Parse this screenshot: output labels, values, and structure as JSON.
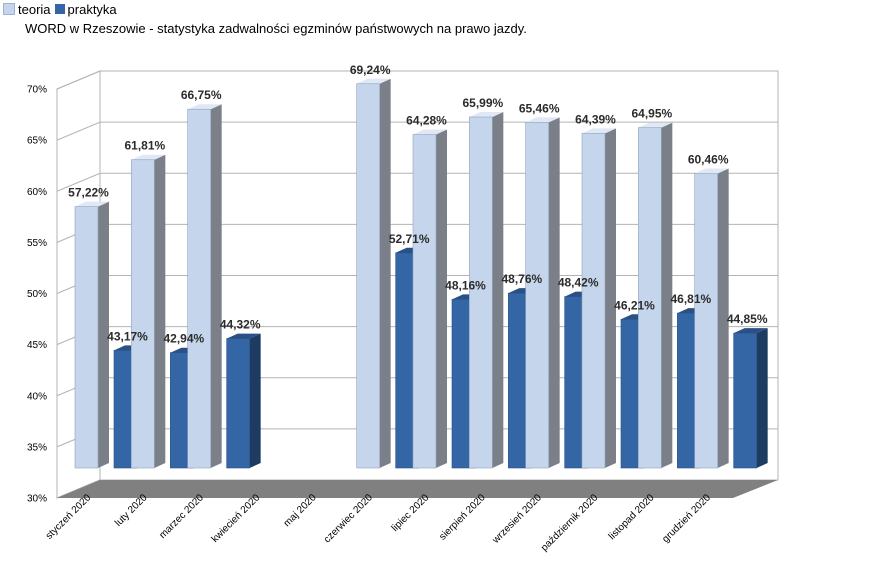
{
  "chart_data": {
    "type": "bar",
    "title": "WORD w Rzeszowie - statystyka zadwalności egzminów państwowych na prawo jazdy.",
    "categories": [
      "styczeń 2020",
      "luty 2020",
      "marzec 2020",
      "kwiecień 2020",
      "maj 2020",
      "czerwiec 2020",
      "lipiec 2020",
      "sierpień 2020",
      "wrzesień 2020",
      "październik 2020",
      "listopad 2020",
      "grudzień 2020"
    ],
    "series": [
      {
        "name": "teoria",
        "color": "#c5d5eb",
        "values": [
          57.22,
          61.81,
          66.75,
          null,
          null,
          69.24,
          64.28,
          65.99,
          65.46,
          64.39,
          64.95,
          60.46
        ],
        "labels": [
          "57,22%",
          "61,81%",
          "66,75%",
          "",
          "",
          "69,24%",
          "64,28%",
          "65,99%",
          "65,46%",
          "64,39%",
          "64,95%",
          "60,46%"
        ]
      },
      {
        "name": "praktyka",
        "color": "#3465a4",
        "values": [
          43.17,
          42.94,
          44.32,
          null,
          null,
          52.71,
          48.16,
          48.76,
          48.42,
          46.21,
          46.81,
          44.85
        ],
        "labels": [
          "43,17%",
          "42,94%",
          "44,32%",
          "",
          "",
          "52,71%",
          "48,16%",
          "48,76%",
          "48,42%",
          "46,21%",
          "46,81%",
          "44,85%"
        ]
      }
    ],
    "y_ticks": [
      "30%",
      "35%",
      "40%",
      "45%",
      "50%",
      "55%",
      "60%",
      "65%",
      "70%"
    ],
    "ylim": [
      30,
      70
    ],
    "grid": true,
    "legend_position": "top-left"
  }
}
